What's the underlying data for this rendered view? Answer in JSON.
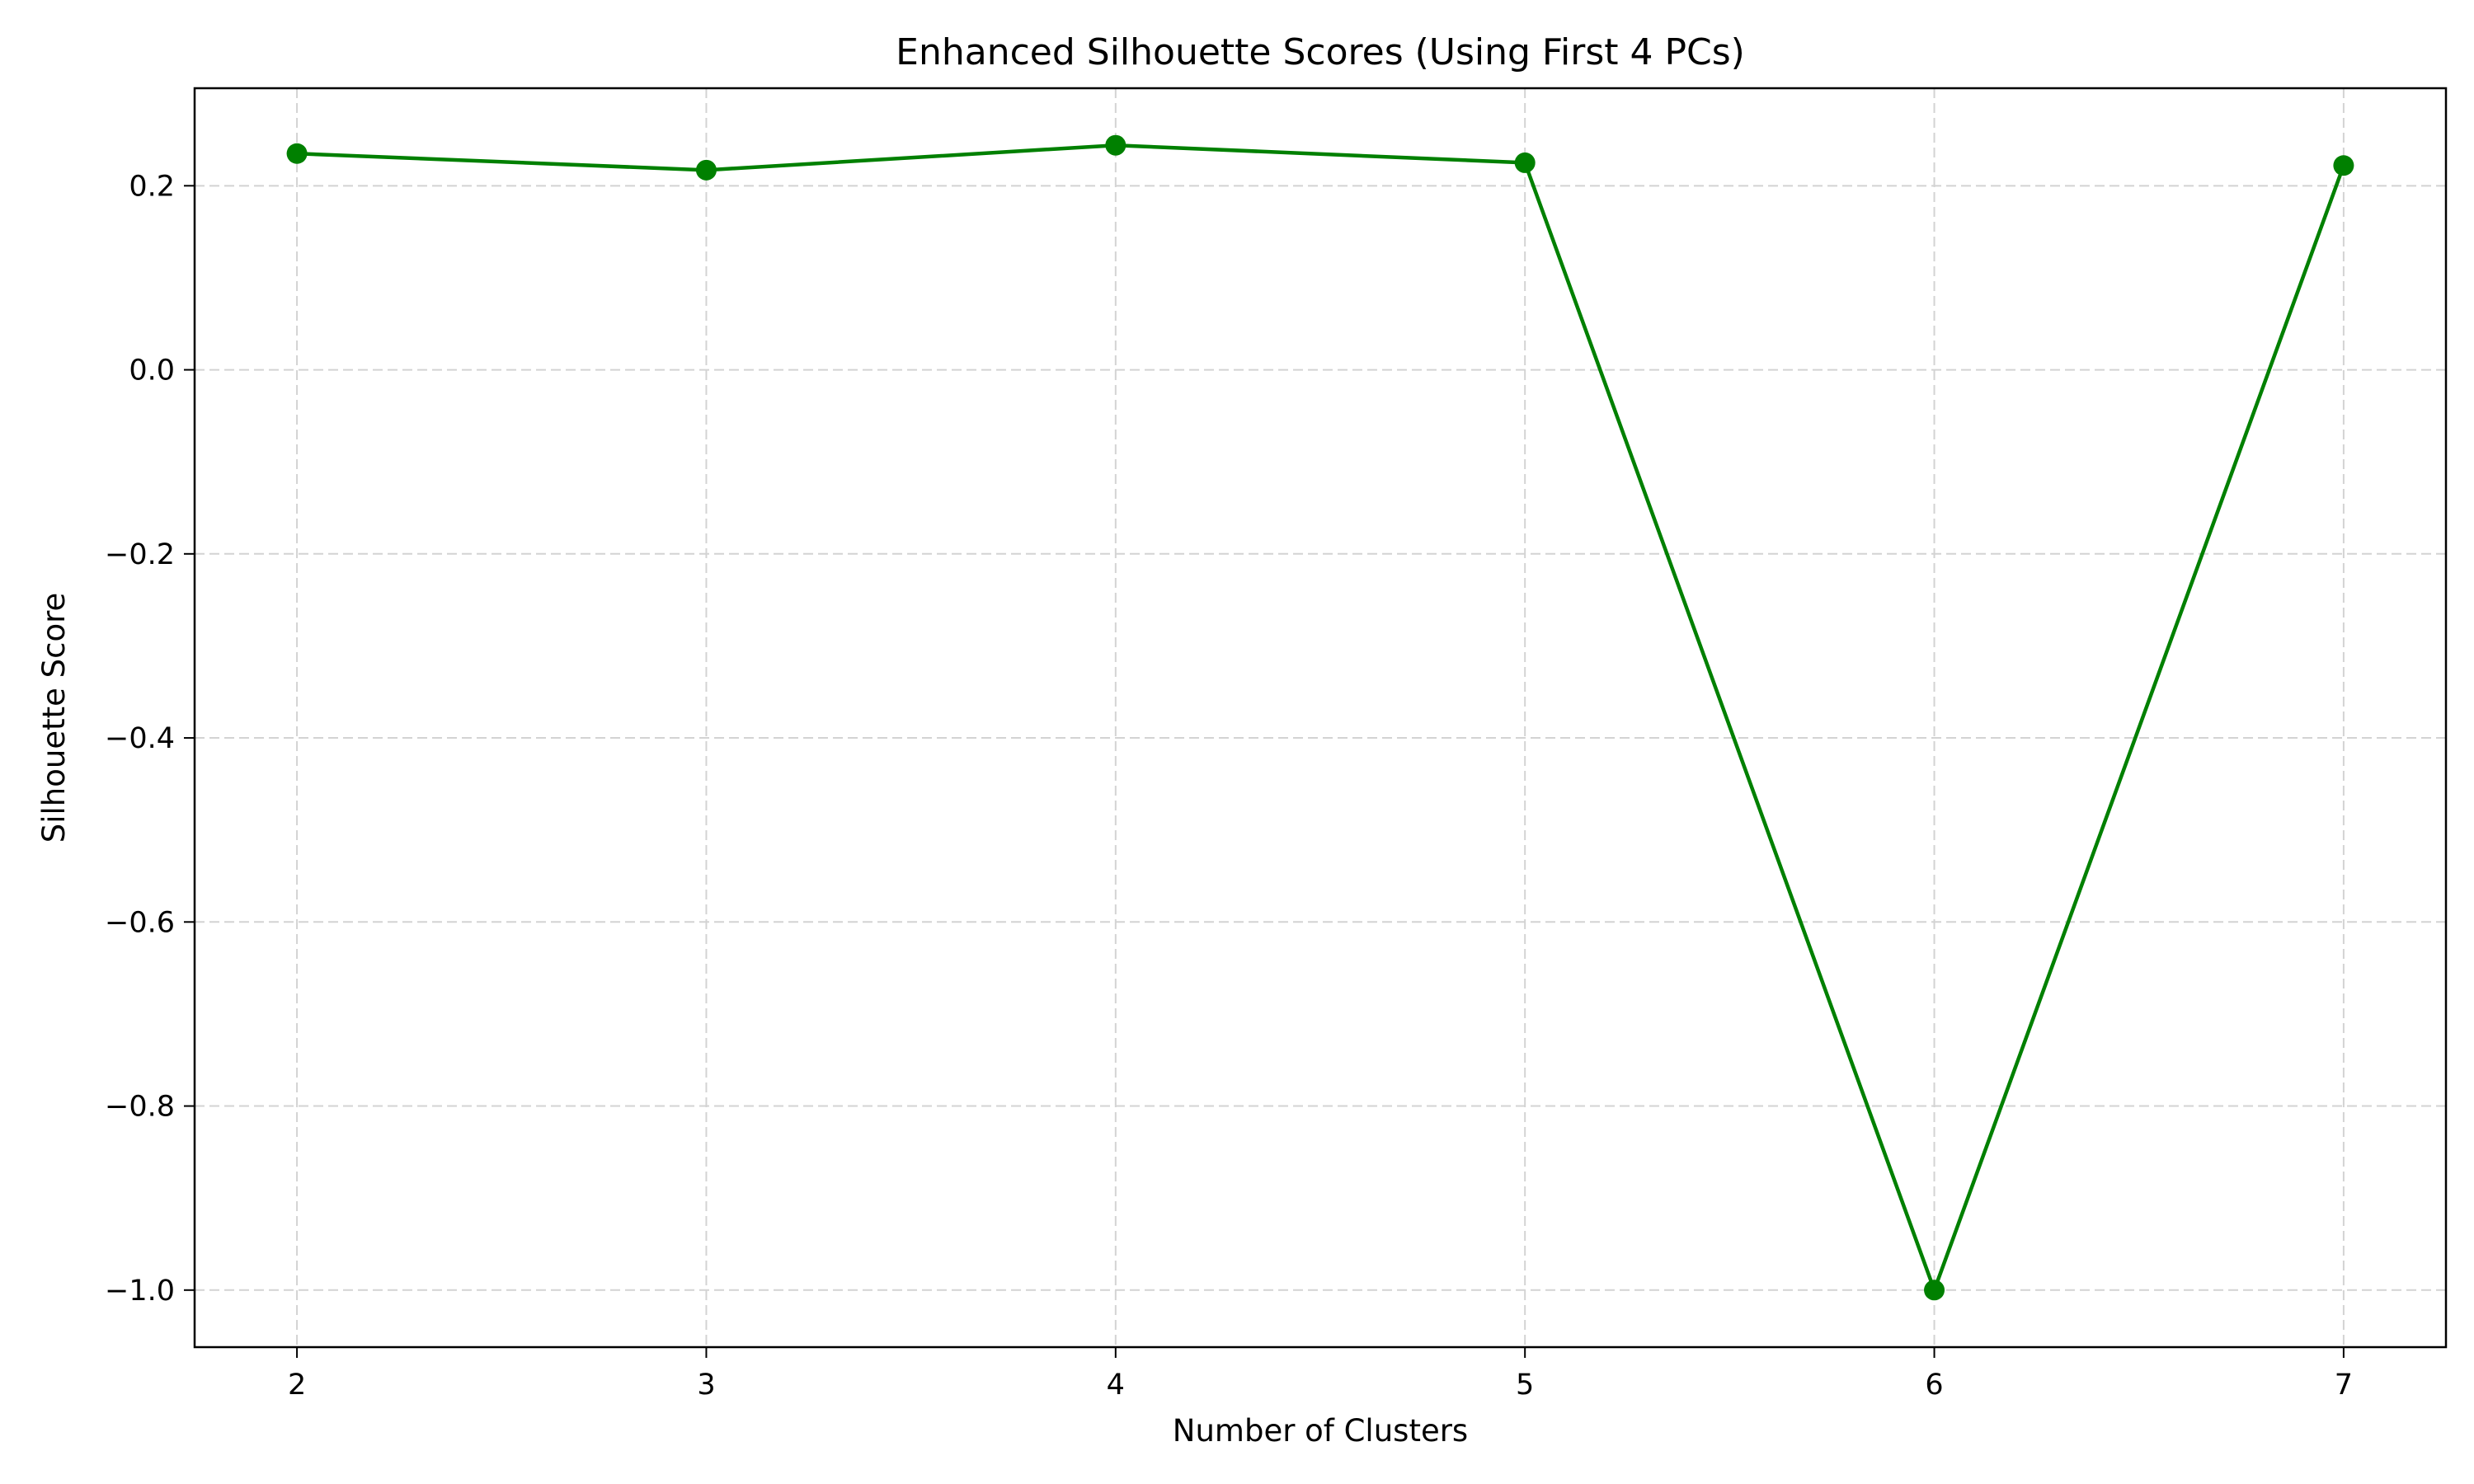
{
  "chart_data": {
    "type": "line",
    "title": "Enhanced Silhouette Scores (Using First 4 PCs)",
    "xlabel": "Number of Clusters",
    "ylabel": "Silhouette Score",
    "x": [
      2,
      3,
      4,
      5,
      6,
      7
    ],
    "series": [
      {
        "values": [
          0.235,
          0.217,
          0.244,
          0.225,
          -1.0,
          0.222
        ],
        "color": "#008000",
        "marker": "circle"
      }
    ],
    "xlim": [
      1.75,
      7.25
    ],
    "ylim": [
      -1.062,
      0.306
    ],
    "x_ticks": [
      2,
      3,
      4,
      5,
      6,
      7
    ],
    "x_tick_labels": [
      "2",
      "3",
      "4",
      "5",
      "6",
      "7"
    ],
    "y_ticks": [
      0.2,
      0.0,
      -0.2,
      -0.4,
      -0.6,
      -0.8,
      -1.0
    ],
    "y_tick_labels": [
      "0.2",
      "0.0",
      "−0.2",
      "−0.4",
      "−0.6",
      "−0.8",
      "−1.0"
    ],
    "grid": true,
    "grid_color": "#d3d3d3",
    "background": "#ffffff"
  }
}
